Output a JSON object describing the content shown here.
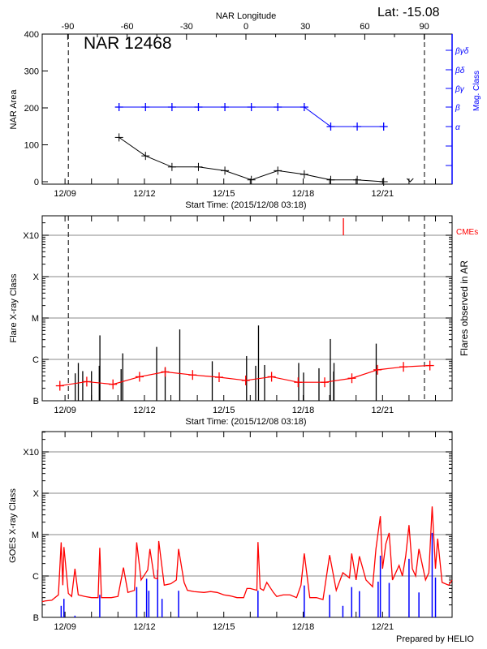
{
  "header": {
    "lat_label": "Lat: -15.08",
    "region_title": "NAR 12468"
  },
  "colors": {
    "area": "#000000",
    "mag_class": "#0000ff",
    "flare_mean": "#ff0000",
    "cme": "#ff0000",
    "goes_long": "#ff0000",
    "goes_short": "#0000ff",
    "grid": "#a0a0a0"
  },
  "chart_data": [
    {
      "type": "line",
      "panel": "region",
      "top_axis_label": "NAR Longitude",
      "top_axis_ticks": [
        "-90",
        "-60",
        "-30",
        "0",
        "30",
        "60",
        "90"
      ],
      "top_axis_range": [
        -90,
        90
      ],
      "xlabel": "Start Time: (2015/12/08 03:18)",
      "x_tick_labels": [
        "12/09",
        "12/12",
        "12/15",
        "12/18",
        "12/21"
      ],
      "x_range": [
        "12/08 03:18",
        "12/23 14:00"
      ],
      "ylabel": "NAR Area",
      "ylim": [
        0,
        400
      ],
      "y_tick_labels": [
        "0",
        "100",
        "200",
        "300",
        "400"
      ],
      "y2label": "Mag. Class",
      "y2_tick_labels": [
        "α",
        "β",
        "βγ",
        "βδ",
        "βγδ"
      ],
      "limb_markers": [
        "12/09 03:00",
        "12/22 14:00"
      ],
      "area": [
        [
          "12/11 01:00",
          120
        ],
        [
          "12/12 01:00",
          70
        ],
        [
          "12/13 01:00",
          40
        ],
        [
          "12/14 01:00",
          40
        ],
        [
          "12/15 01:00",
          30
        ],
        [
          "12/16 01:00",
          5
        ],
        [
          "12/17 01:00",
          30
        ],
        [
          "12/18 01:00",
          20
        ],
        [
          "12/19 01:00",
          5
        ],
        [
          "12/20 01:00",
          5
        ],
        [
          "12/21 01:00",
          0
        ]
      ],
      "area_upper_limit_marker": [
        "12/22 01:00",
        0
      ],
      "mag_class": [
        [
          "12/11 01:00",
          "β"
        ],
        [
          "12/12 01:00",
          "β"
        ],
        [
          "12/13 01:00",
          "β"
        ],
        [
          "12/14 01:00",
          "β"
        ],
        [
          "12/15 01:00",
          "β"
        ],
        [
          "12/16 01:00",
          "β"
        ],
        [
          "12/17 01:00",
          "β"
        ],
        [
          "12/18 01:00",
          "β"
        ],
        [
          "12/19 01:00",
          "α"
        ],
        [
          "12/20 01:00",
          "α"
        ],
        [
          "12/21 01:00",
          "α"
        ]
      ]
    },
    {
      "type": "bar",
      "panel": "flares",
      "xlabel": "Start Time: (2015/12/08 03:18)",
      "x_tick_labels": [
        "12/09",
        "12/12",
        "12/15",
        "12/18",
        "12/21"
      ],
      "ylabel": "Flare X-ray Class",
      "y2label": "Flares observed in AR",
      "y_scale": "log",
      "y_tick_labels": [
        "B",
        "C",
        "M",
        "X",
        "X10"
      ],
      "grid": true,
      "cme_label": "CMEs",
      "cmes": [
        "12/19 12:30"
      ],
      "limb_markers": [
        "12/09 03:00",
        "12/22 14:00"
      ],
      "flares": [
        [
          "12/09 09:16",
          "B4.6"
        ],
        [
          "12/09 12:03",
          "B8.2"
        ],
        [
          "12/09 16:03",
          "B5.2"
        ],
        [
          "12/10 00:00",
          "B5.2"
        ],
        [
          "12/10 07:03",
          "B7.0"
        ],
        [
          "12/10 07:38",
          "C3.8"
        ],
        [
          "12/11 02:52",
          "B5.8"
        ],
        [
          "12/11 04:20",
          "C1.4"
        ],
        [
          "12/12 11:06",
          "C2.0"
        ],
        [
          "12/12 18:50",
          "B6.3"
        ],
        [
          "12/13 08:05",
          "C5.3"
        ],
        [
          "12/14 13:32",
          "B9.0"
        ],
        [
          "12/15 20:40",
          "C1.2"
        ],
        [
          "12/16 04:55",
          "B7.0"
        ],
        [
          "12/16 07:29",
          "C6.6"
        ],
        [
          "12/16 13:01",
          "B7.3"
        ],
        [
          "12/17 19:56",
          "B8.2"
        ],
        [
          "12/18 00:21",
          "B4.8"
        ],
        [
          "12/18 14:20",
          "B6.1"
        ],
        [
          "12/19 00:39",
          "C3.1"
        ],
        [
          "12/19 03:36",
          "B5.1"
        ],
        [
          "12/19 03:58",
          "B8.2"
        ],
        [
          "12/20 18:14",
          "C2.4"
        ]
      ],
      "daily_level": [
        [
          "12/08 19:20",
          "B2.3"
        ],
        [
          "12/09 19:43",
          "B2.9"
        ],
        [
          "12/10 19:29",
          "B2.5"
        ],
        [
          "12/11 19:34",
          "B3.8"
        ],
        [
          "12/12 18:50",
          "B5.0"
        ],
        [
          "12/13 19:43",
          "B4.2"
        ],
        [
          "12/14 19:47",
          "B3.7"
        ],
        [
          "12/15 19:52",
          "B3.1"
        ],
        [
          "12/16 19:21",
          "B3.8"
        ],
        [
          "12/17 19:26",
          "B2.8"
        ],
        [
          "12/18 19:30",
          "B2.8"
        ],
        [
          "12/19 20:10",
          "B3.5"
        ],
        [
          "12/20 19:26",
          "B5.6"
        ],
        [
          "12/21 18:57",
          "B6.6"
        ],
        [
          "12/22 18:57",
          "B7.1"
        ]
      ]
    },
    {
      "type": "line",
      "panel": "goes",
      "x_tick_labels": [
        "12/09",
        "12/12",
        "12/15",
        "12/18",
        "12/21"
      ],
      "ylabel": "GOES X-ray Class",
      "y_scale": "log",
      "y_tick_labels": [
        "B",
        "C",
        "M",
        "X",
        "X10"
      ],
      "grid": true,
      "long_channel": [
        [
          "12/08 03:18",
          "B2.4"
        ],
        [
          "12/08 06:00",
          "B2.5"
        ],
        [
          "12/08 12:00",
          "B2.6"
        ],
        [
          "12/08 18:00",
          "B3.5"
        ],
        [
          "12/08 20:30",
          "C6.5"
        ],
        [
          "12/08 22:00",
          "B6.0"
        ],
        [
          "12/08 23:00",
          "C5.0"
        ],
        [
          "12/09 03:00",
          "B3.8"
        ],
        [
          "12/09 06:00",
          "B3.2"
        ],
        [
          "12/09 09:00",
          "C1.5"
        ],
        [
          "12/09 12:00",
          "B3.5"
        ],
        [
          "12/09 18:00",
          "B3.2"
        ],
        [
          "12/10 00:00",
          "B3.0"
        ],
        [
          "12/10 06:00",
          "B3.0"
        ],
        [
          "12/10 07:30",
          "C4.8"
        ],
        [
          "12/10 09:00",
          "B3.0"
        ],
        [
          "12/10 18:00",
          "B3.0"
        ],
        [
          "12/11 00:00",
          "B3.2"
        ],
        [
          "12/11 05:00",
          "C1.6"
        ],
        [
          "12/11 09:00",
          "B4.0"
        ],
        [
          "12/11 15:00",
          "B4.5"
        ],
        [
          "12/11 17:00",
          "C6.5"
        ],
        [
          "12/11 21:00",
          "B8.0"
        ],
        [
          "12/12 03:00",
          "C1.4"
        ],
        [
          "12/12 05:00",
          "C4.5"
        ],
        [
          "12/12 09:00",
          "B9.0"
        ],
        [
          "12/12 12:00",
          "B8.5"
        ],
        [
          "12/12 13:00",
          "C7.0"
        ],
        [
          "12/12 18:00",
          "B6.0"
        ],
        [
          "12/13 00:00",
          "B6.5"
        ],
        [
          "12/13 05:00",
          "B8.0"
        ],
        [
          "12/13 07:00",
          "C4.5"
        ],
        [
          "12/13 12:00",
          "B7.0"
        ],
        [
          "12/13 15:00",
          "B4.5"
        ],
        [
          "12/13 21:00",
          "B4.2"
        ],
        [
          "12/14 06:00",
          "B4.0"
        ],
        [
          "12/14 12:00",
          "B4.2"
        ],
        [
          "12/14 18:00",
          "B4.0"
        ],
        [
          "12/15 00:00",
          "B3.5"
        ],
        [
          "12/15 06:00",
          "B3.3"
        ],
        [
          "12/15 12:00",
          "B3.0"
        ],
        [
          "12/15 18:00",
          "B3.0"
        ],
        [
          "12/15 21:00",
          "B5.0"
        ],
        [
          "12/16 00:00",
          "B5.0"
        ],
        [
          "12/16 06:00",
          "B4.5"
        ],
        [
          "12/16 07:00",
          "C6.6"
        ],
        [
          "12/16 09:00",
          "B5.0"
        ],
        [
          "12/16 12:00",
          "B4.5"
        ],
        [
          "12/16 15:00",
          "B7.0"
        ],
        [
          "12/16 21:00",
          "B4.0"
        ],
        [
          "12/17 00:00",
          "B3.2"
        ],
        [
          "12/17 06:00",
          "B3.5"
        ],
        [
          "12/17 12:00",
          "B3.5"
        ],
        [
          "12/17 18:00",
          "B3.0"
        ],
        [
          "12/17 22:00",
          "B6.0"
        ],
        [
          "12/18 01:00",
          "C3.5"
        ],
        [
          "12/18 06:00",
          "B3.0"
        ],
        [
          "12/18 12:00",
          "B3.0"
        ],
        [
          "12/18 18:00",
          "B2.7"
        ],
        [
          "12/19 00:00",
          "C3.2"
        ],
        [
          "12/19 06:00",
          "B4.5"
        ],
        [
          "12/19 12:00",
          "C1.2"
        ],
        [
          "12/19 18:00",
          "B9.0"
        ],
        [
          "12/19 20:00",
          "C3.5"
        ],
        [
          "12/20 00:00",
          "B8.0"
        ],
        [
          "12/20 03:00",
          "C3.0"
        ],
        [
          "12/20 09:00",
          "B8.0"
        ],
        [
          "12/20 15:00",
          "B5.5"
        ],
        [
          "12/20 18:00",
          "C4.5"
        ],
        [
          "12/20 22:00",
          "M2.8"
        ],
        [
          "12/21 00:00",
          "C1.5"
        ],
        [
          "12/21 03:00",
          "C6.0"
        ],
        [
          "12/21 06:00",
          "M1.1"
        ],
        [
          "12/21 09:00",
          "B8.0"
        ],
        [
          "12/21 15:00",
          "C1.8"
        ],
        [
          "12/21 18:00",
          "C1.0"
        ],
        [
          "12/21 21:00",
          "C3.0"
        ],
        [
          "12/22 00:00",
          "M1.7"
        ],
        [
          "12/22 03:00",
          "C1.5"
        ],
        [
          "12/22 06:00",
          "C1.0"
        ],
        [
          "12/22 09:00",
          "C4.5"
        ],
        [
          "12/22 15:00",
          "B8.0"
        ],
        [
          "12/22 18:00",
          "C1.2"
        ],
        [
          "12/22 21:00",
          "M4.8"
        ],
        [
          "12/23 00:00",
          "C1.5"
        ],
        [
          "12/23 02:00",
          "C8.0"
        ],
        [
          "12/23 06:00",
          "B7.0"
        ],
        [
          "12/23 12:00",
          "B6.0"
        ],
        [
          "12/23 15:00",
          "B8.0"
        ]
      ],
      "short_channel": [
        [
          "12/08 20:30",
          "B1.9"
        ],
        [
          "12/08 23:00",
          "B2.8"
        ],
        [
          "12/09 09:00",
          "B1.1"
        ],
        [
          "12/10 07:30",
          "B3.5"
        ],
        [
          "12/11 17:00",
          "B5.4"
        ],
        [
          "12/12 02:00",
          "B8.6"
        ],
        [
          "12/12 04:00",
          "B4.4"
        ],
        [
          "12/12 12:00",
          "C1.4"
        ],
        [
          "12/12 16:00",
          "B2.8"
        ],
        [
          "12/13 07:00",
          "B4.4"
        ],
        [
          "12/16 07:00",
          "B4.4"
        ],
        [
          "12/18 01:00",
          "B5.9"
        ],
        [
          "12/19 00:00",
          "B3.5"
        ],
        [
          "12/19 12:00",
          "B1.9"
        ],
        [
          "12/19 20:00",
          "B5.4"
        ],
        [
          "12/20 03:00",
          "B4.3"
        ],
        [
          "12/20 20:00",
          "B7.3"
        ],
        [
          "12/20 22:00",
          "C3.1"
        ],
        [
          "12/21 06:00",
          "B6.8"
        ],
        [
          "12/22 00:00",
          "C2.6"
        ],
        [
          "12/22 09:00",
          "B4.0"
        ],
        [
          "12/22 21:00",
          "M1.1"
        ],
        [
          "12/23 00:00",
          "B9.2"
        ]
      ]
    }
  ],
  "footer": {
    "credit": "Prepared by HELIO"
  }
}
